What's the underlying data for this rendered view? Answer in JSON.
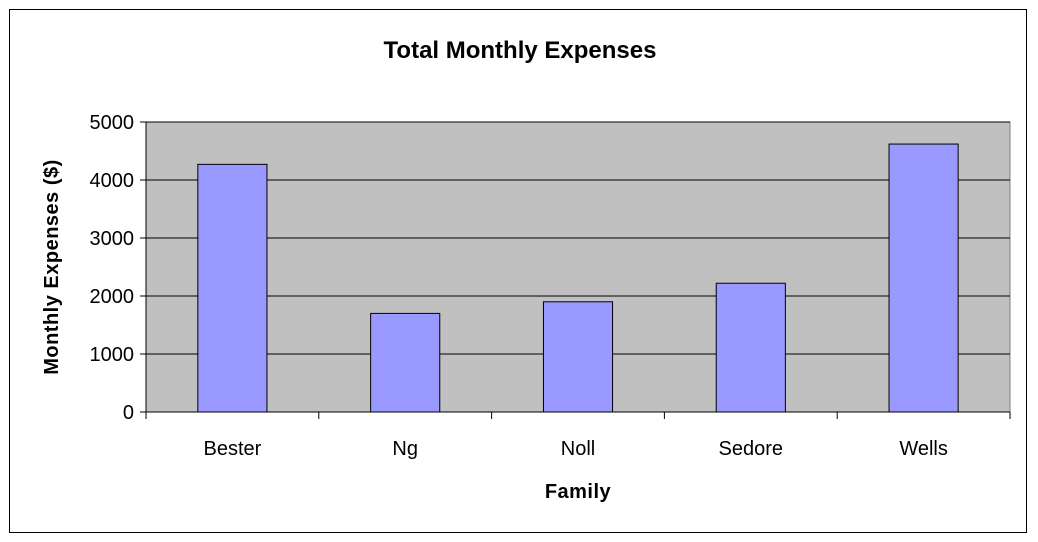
{
  "chart_data": {
    "type": "bar",
    "title": "Total Monthly Expenses",
    "xlabel": "Family",
    "ylabel": "Monthly Expenses ($)",
    "categories": [
      "Bester",
      "Ng",
      "Noll",
      "Sedore",
      "Wells"
    ],
    "values": [
      4270,
      1700,
      1900,
      2220,
      4620
    ],
    "ylim": [
      0,
      5000
    ],
    "yticks": [
      0,
      1000,
      2000,
      3000,
      4000,
      5000
    ],
    "grid": true,
    "legend": "none",
    "colors": {
      "bar_fill": "#9999ff",
      "bar_stroke": "#000000",
      "plot_background": "#c0c0c0",
      "gridline": "#000000"
    }
  }
}
